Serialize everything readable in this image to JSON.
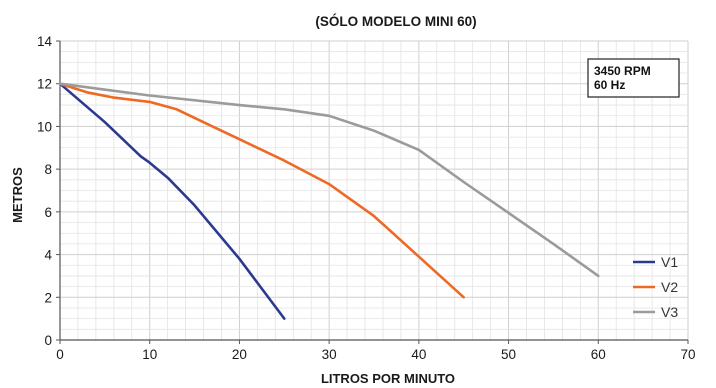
{
  "chart_data": {
    "type": "line",
    "title": "(SÓLO MODELO MINI 60)",
    "xlabel": "LITROS POR MINUTO",
    "ylabel": "METROS",
    "xlim": [
      0,
      70
    ],
    "ylim": [
      0,
      14
    ],
    "x_ticks": [
      "0",
      "10",
      "20",
      "30",
      "40",
      "50",
      "60",
      "70"
    ],
    "y_ticks": [
      "0",
      "2",
      "4",
      "6",
      "8",
      "10",
      "12",
      "14"
    ],
    "grid": true,
    "legend_position": "bottom-right",
    "annotation": [
      "3450 RPM",
      "60 Hz"
    ],
    "series": [
      {
        "name": "V1",
        "color": "#2b3a8f",
        "points": [
          [
            0,
            12
          ],
          [
            5,
            10.2
          ],
          [
            9,
            8.6
          ],
          [
            10,
            8.3
          ],
          [
            12,
            7.6
          ],
          [
            15,
            6.3
          ],
          [
            20,
            3.8
          ],
          [
            25,
            1.0
          ]
        ]
      },
      {
        "name": "V2",
        "color": "#ee6a24",
        "points": [
          [
            0,
            12
          ],
          [
            3,
            11.6
          ],
          [
            6,
            11.35
          ],
          [
            10,
            11.15
          ],
          [
            13,
            10.8
          ],
          [
            16,
            10.2
          ],
          [
            20,
            9.4
          ],
          [
            25,
            8.4
          ],
          [
            30,
            7.3
          ],
          [
            35,
            5.8
          ],
          [
            40,
            3.9
          ],
          [
            45,
            2.0
          ]
        ]
      },
      {
        "name": "V3",
        "color": "#9b9b9b",
        "points": [
          [
            0,
            12
          ],
          [
            10,
            11.45
          ],
          [
            20,
            11.0
          ],
          [
            25,
            10.8
          ],
          [
            30,
            10.5
          ],
          [
            35,
            9.8
          ],
          [
            40,
            8.9
          ],
          [
            45,
            7.4
          ],
          [
            50,
            5.95
          ],
          [
            55,
            4.5
          ],
          [
            60,
            3.0
          ]
        ]
      }
    ]
  }
}
